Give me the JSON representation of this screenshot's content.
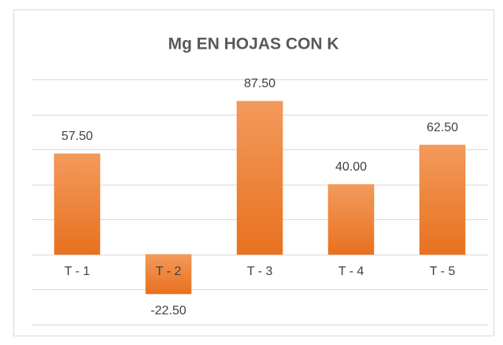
{
  "chart_data": {
    "type": "bar",
    "title": "Mg EN HOJAS CON K",
    "categories": [
      "T - 1",
      "T - 2",
      "T - 3",
      "T - 4",
      "T - 5"
    ],
    "values": [
      57.5,
      -22.5,
      87.5,
      40,
      62.5
    ],
    "value_labels": [
      "57.50",
      "-22.50",
      "87.50",
      "40.00",
      "62.50"
    ],
    "color": "#ed7d31",
    "ylim": [
      -40,
      100
    ],
    "yticks": [
      -40,
      -20,
      0,
      20,
      40,
      60,
      80,
      100
    ],
    "grid": true
  }
}
